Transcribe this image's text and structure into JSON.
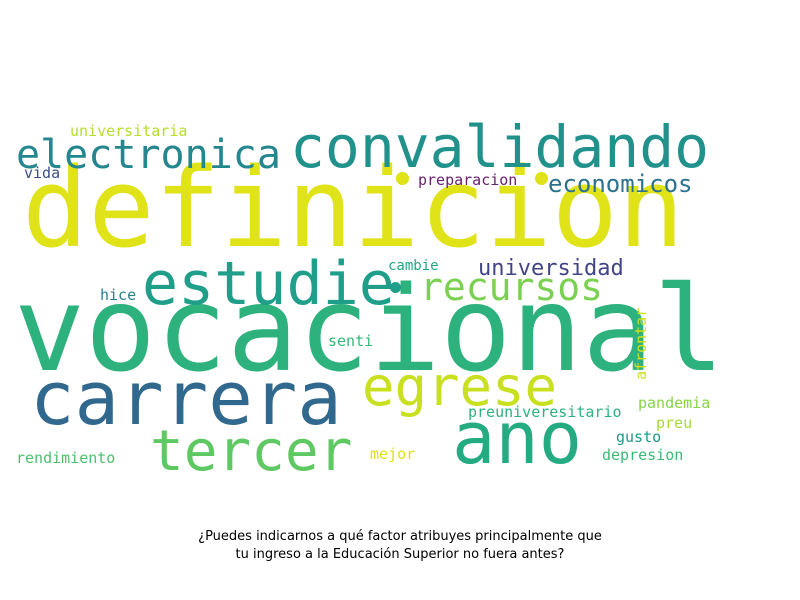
{
  "wordcloud": {
    "words": [
      {
        "text": "definicion",
        "color": "#dfe318"
      },
      {
        "text": "vocacional",
        "color": "#2db27d"
      },
      {
        "text": "convalidando",
        "color": "#21918c"
      },
      {
        "text": "carrera",
        "color": "#31688e"
      },
      {
        "text": "electronica",
        "color": "#24868e"
      },
      {
        "text": "ano",
        "color": "#25ab82"
      },
      {
        "text": "estudie",
        "color": "#1f9e89"
      },
      {
        "text": "egrese",
        "color": "#c8e020"
      },
      {
        "text": "tercer",
        "color": "#5ec962"
      },
      {
        "text": "recursos",
        "color": "#7ad151"
      },
      {
        "text": "economicos",
        "color": "#2c728e"
      },
      {
        "text": "universidad",
        "color": "#414487"
      },
      {
        "text": "preparacion",
        "color": "#6a2071"
      },
      {
        "text": "universitaria",
        "color": "#b5de2b"
      },
      {
        "text": "vida",
        "color": "#3e4c8a"
      },
      {
        "text": "cambie",
        "color": "#22a884"
      },
      {
        "text": "hice",
        "color": "#27808e"
      },
      {
        "text": "senti",
        "color": "#35b779"
      },
      {
        "text": "afrontar",
        "color": "#d0e11c"
      },
      {
        "text": "pandemia",
        "color": "#86d549"
      },
      {
        "text": "preuniveresitario",
        "color": "#2db27d"
      },
      {
        "text": "preu",
        "color": "#a5db36"
      },
      {
        "text": "gusto",
        "color": "#1f988b"
      },
      {
        "text": "rendimiento",
        "color": "#4ac16d"
      },
      {
        "text": "mejor",
        "color": "#dde318"
      },
      {
        "text": "depresion",
        "color": "#3bbb75"
      }
    ]
  },
  "caption": {
    "line1": "¿Puedes indicarnos a qué factor atribuyes principalmente que",
    "line2": "tu ingreso a la Educación Superior no fuera antes?"
  }
}
